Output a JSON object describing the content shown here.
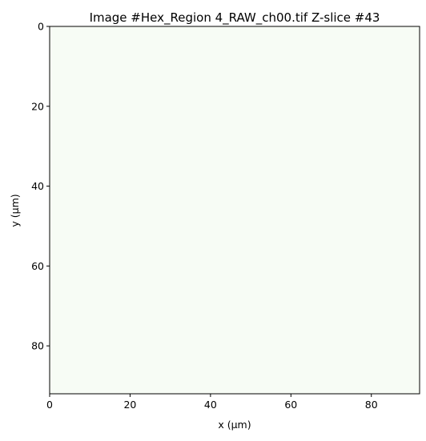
{
  "chart_data": {
    "type": "heatmap",
    "title": "Image #Hex_Region 4_RAW_ch00.tif Z-slice #43",
    "xlabel": "x (μm)",
    "ylabel": "y (μm)",
    "xlim": [
      0,
      92
    ],
    "ylim": [
      92,
      0
    ],
    "y_inverted": true,
    "xticks": [
      0,
      20,
      40,
      60,
      80
    ],
    "yticks": [
      0,
      20,
      40,
      60,
      80
    ],
    "fill_color": "#f7fcf5",
    "grid": false,
    "legend": "none",
    "colorbar": false
  }
}
